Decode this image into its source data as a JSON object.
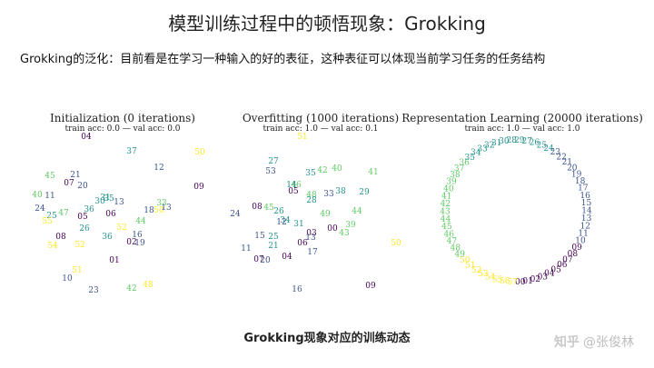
{
  "title": "模型训练过程中的顿悟现象：Grokking",
  "subtitle": "Grokking的泛化：目前看是在学习一种输入的好的表征，这种表征可以体现当前学习任务的任务结构",
  "panels": [
    {
      "title": "Initialization (0 iterations)",
      "subtitle": "train acc: 0.0 — val acc: 0.0"
    },
    {
      "title": "Overfitting (1000 iterations)",
      "subtitle": "train acc: 1.0 — val acc: 0.1"
    },
    {
      "title": "Representation Learning (20000 iterations)",
      "subtitle": "train acc: 1.0 — val acc: 1.0"
    }
  ],
  "caption": "Grokking现象对应的训练动态",
  "watermark": {
    "logo": "知乎",
    "user": "@张俊林"
  },
  "palette": [
    "#440154",
    "#3b528b",
    "#21918c",
    "#5ec962",
    "#fde725"
  ],
  "scatter": [
    {
      "labels": [
        "04",
        "37",
        "50",
        "12",
        "45",
        "21",
        "07",
        "20",
        "09",
        "40",
        "11",
        "31",
        "13",
        "30",
        "35",
        "24",
        "25",
        "47",
        "05",
        "06",
        "55",
        "50",
        "44",
        "18",
        "26",
        "52",
        "08",
        "36",
        "16",
        "02",
        "19",
        "54",
        "52",
        "01",
        "51",
        "10",
        "23",
        "42",
        "48",
        "36",
        "13",
        "33"
      ],
      "color_idx": [
        0,
        2,
        4,
        1,
        3,
        1,
        0,
        1,
        0,
        3,
        1,
        2,
        1,
        2,
        2,
        1,
        2,
        3,
        0,
        0,
        4,
        4,
        3,
        1,
        2,
        4,
        0,
        2,
        1,
        0,
        1,
        4,
        4,
        0,
        4,
        1,
        1,
        3,
        4,
        2,
        1,
        3
      ]
    },
    {
      "labels": [
        "51",
        "27",
        "53",
        "35",
        "42",
        "40",
        "41",
        "29",
        "46",
        "05",
        "48",
        "38",
        "33",
        "28",
        "24",
        "08",
        "45",
        "26",
        "34",
        "31",
        "49",
        "44",
        "39",
        "15",
        "25",
        "03",
        "06",
        "00",
        "13",
        "12",
        "21",
        "17",
        "07",
        "20",
        "04",
        "16",
        "09",
        "50",
        "14",
        "11",
        "43"
      ],
      "color_idx": [
        4,
        2,
        1,
        2,
        3,
        3,
        3,
        2,
        3,
        0,
        3,
        2,
        1,
        2,
        1,
        0,
        3,
        2,
        2,
        2,
        3,
        3,
        3,
        1,
        2,
        0,
        0,
        0,
        1,
        1,
        2,
        1,
        0,
        1,
        0,
        1,
        0,
        4,
        2,
        1,
        3
      ]
    },
    {
      "labels": [
        "28",
        "29",
        "27",
        "26",
        "25",
        "24",
        "23",
        "22",
        "21",
        "20",
        "19",
        "18",
        "17",
        "16",
        "15",
        "14",
        "13",
        "12",
        "11",
        "10",
        "09",
        "08",
        "07",
        "06",
        "05",
        "04",
        "03",
        "02",
        "01",
        "00",
        "57",
        "56",
        "55",
        "54",
        "53",
        "52",
        "51",
        "50",
        "49",
        "48",
        "47",
        "46",
        "45",
        "44",
        "43",
        "42",
        "41",
        "40",
        "39",
        "38",
        "37",
        "36",
        "35",
        "34",
        "33",
        "32",
        "31",
        "30"
      ],
      "color_idx": [
        2,
        2,
        2,
        2,
        2,
        2,
        1,
        1,
        1,
        1,
        1,
        1,
        1,
        1,
        1,
        1,
        1,
        1,
        1,
        1,
        0,
        0,
        0,
        0,
        0,
        0,
        0,
        0,
        0,
        0,
        4,
        4,
        4,
        4,
        4,
        4,
        4,
        4,
        3,
        3,
        3,
        3,
        3,
        3,
        3,
        3,
        3,
        3,
        3,
        3,
        3,
        3,
        2,
        2,
        2,
        2,
        2,
        2
      ]
    }
  ]
}
